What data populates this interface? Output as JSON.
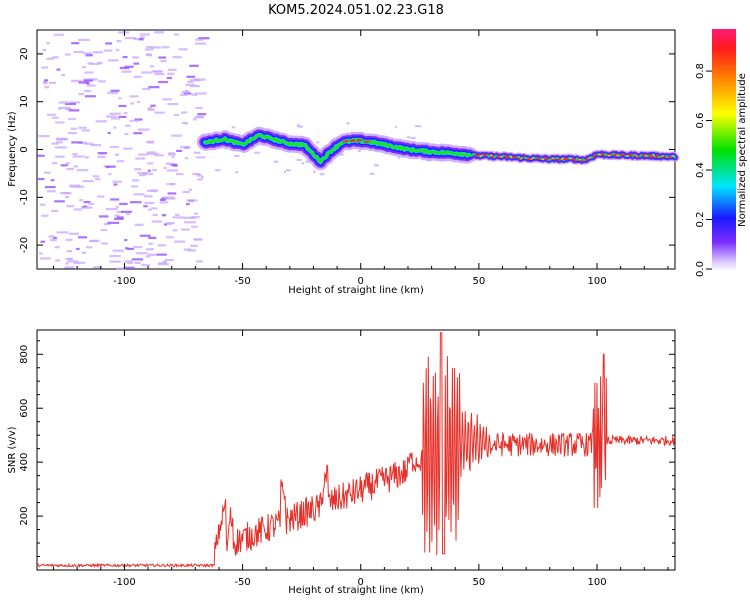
{
  "title": "KOM5.2024.051.02.23.G18",
  "colors": {
    "snr_line": "#e8302a",
    "noise_speckle": "#c9a6ff",
    "noise_dark": "#9b5cff"
  },
  "chart_data": [
    {
      "type": "heatmap",
      "xlabel": "Height of straight line (km)",
      "ylabel": "Frequency (Hz)",
      "xlim": [
        -137,
        133
      ],
      "ylim": [
        -25,
        25
      ],
      "x_ticks": [
        -100,
        -50,
        0,
        50,
        100
      ],
      "y_ticks": [
        -20,
        -10,
        0,
        10,
        20
      ],
      "colorbar": {
        "label": "Normalized spectral amplitude",
        "range": [
          0,
          1
        ],
        "ticks": [
          "0.0",
          "0.2",
          "0.4",
          "0.6",
          "0.8"
        ]
      },
      "ridge": {
        "x": [
          -65,
          -58,
          -50,
          -43,
          -36,
          -30,
          -24,
          -20,
          -17,
          -13,
          -8,
          -3,
          0,
          5,
          10,
          20,
          30,
          40,
          50,
          60,
          70,
          80,
          90,
          95,
          100,
          110,
          120,
          133
        ],
        "freq": [
          1.5,
          2.2,
          1.0,
          3.0,
          2.0,
          1.2,
          1.0,
          -1.0,
          -2.5,
          -0.5,
          1.5,
          1.8,
          1.8,
          1.5,
          1.0,
          0.0,
          -0.5,
          -0.8,
          -1.3,
          -1.5,
          -1.8,
          -2.0,
          -2.0,
          -2.2,
          -1.0,
          -1.2,
          -1.3,
          -1.5
        ]
      },
      "noise_region_x": [
        -137,
        -68
      ]
    },
    {
      "type": "line",
      "xlabel": "Height of straight line (km)",
      "ylabel": "SNR (v/v)",
      "xlim": [
        -137,
        133
      ],
      "ylim": [
        0,
        890
      ],
      "x_ticks": [
        -100,
        -50,
        0,
        50,
        100
      ],
      "y_ticks": [
        200,
        400,
        600,
        800
      ]
    }
  ]
}
